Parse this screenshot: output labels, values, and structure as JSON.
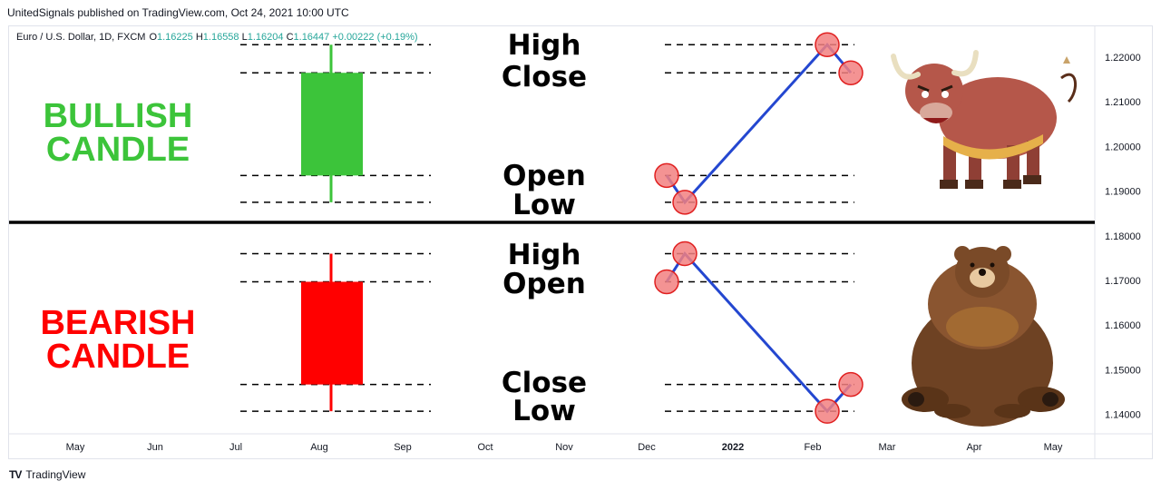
{
  "publisher_line": "UnitedSignals published on TradingView.com, Oct 24, 2021 10:00 UTC",
  "legend": {
    "symbol": "Euro / U.S. Dollar, 1D, FXCM",
    "o_label": "O",
    "o_value": "1.16225",
    "h_label": "H",
    "h_value": "1.16558",
    "l_label": "L",
    "l_value": "1.16204",
    "c_label": "C",
    "c_value": "1.16447",
    "change": "+0.00222 (+0.19%)"
  },
  "footer": {
    "logo_text": "TV",
    "brand": "TradingView"
  },
  "colors": {
    "bull": "#3cc43a",
    "bear": "#ff0000",
    "line": "#2447d0",
    "marker_fill": "#f28080",
    "marker_stroke": "#e02020",
    "legend_green": "#26a69a"
  },
  "chart_data": {
    "type": "line",
    "yaxis": {
      "ticks": [
        "1.22000",
        "1.21000",
        "1.20000",
        "1.19000",
        "1.18000",
        "1.17000",
        "1.16000",
        "1.15000",
        "1.14000"
      ],
      "range": [
        1.1365,
        1.2285
      ]
    },
    "xaxis": {
      "ticks": [
        "May",
        "Jun",
        "Jul",
        "Aug",
        "Sep",
        "Oct",
        "Nov",
        "Dec",
        "2022",
        "Feb",
        "Mar",
        "Apr",
        "May"
      ]
    },
    "panels": [
      {
        "id": "bull",
        "title_lines": [
          "BULLISH",
          "CANDLE"
        ],
        "candle": {
          "open": 1.1935,
          "high": 1.2228,
          "low": 1.1875,
          "close": 1.2165
        },
        "price_labels": {
          "high": "High",
          "close": "Close",
          "open": "Open",
          "low": "Low"
        },
        "path": [
          {
            "label": "Open",
            "value": 1.1935
          },
          {
            "label": "Low",
            "value": 1.1875
          },
          {
            "label": "High",
            "value": 1.2228
          },
          {
            "label": "Close",
            "value": 1.2165
          }
        ]
      },
      {
        "id": "bear",
        "title_lines": [
          "BEARISH",
          "CANDLE"
        ],
        "candle": {
          "open": 1.1697,
          "high": 1.176,
          "low": 1.1407,
          "close": 1.1467
        },
        "price_labels": {
          "high": "High",
          "open": "Open",
          "close": "Close",
          "low": "Low"
        },
        "path": [
          {
            "label": "Open",
            "value": 1.1697
          },
          {
            "label": "High",
            "value": 1.176
          },
          {
            "label": "Low",
            "value": 1.1407
          },
          {
            "label": "Close",
            "value": 1.1467
          }
        ]
      }
    ]
  }
}
